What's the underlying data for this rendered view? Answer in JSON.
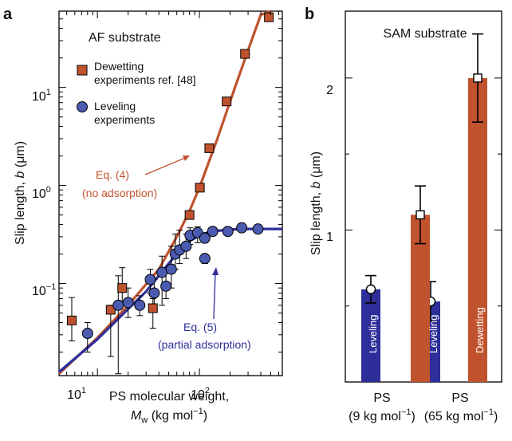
{
  "panel_a": {
    "letter": "a",
    "title": "AF substrate",
    "legend": [
      {
        "label_line1": "Dewetting",
        "label_line2": "experiments ref. [48]",
        "color": "#c0532e",
        "marker": "square"
      },
      {
        "label_line1": "Leveling",
        "label_line2": "experiments",
        "color": "#4a5bb0",
        "marker": "circle"
      }
    ],
    "anno_red": {
      "line1": "Eq. (4)",
      "line2": "(no adsorption)"
    },
    "anno_blue": {
      "line1": "Eq. (5)",
      "line2": "(partial adsorption)"
    },
    "xlabel_line1": "PS molecular weight,",
    "xlabel_line2_var": "M",
    "xlabel_line2_sub": "w",
    "xlabel_line2_unit": " (kg mol",
    "xlabel_line2_sup": "−1",
    "xlabel_line2_end": ")",
    "ylabel_main": "Slip length, ",
    "ylabel_var": "b",
    "ylabel_unit": " (μm)",
    "xticks": [
      {
        "base": "10",
        "exp": "1"
      },
      {
        "base": "10",
        "exp": "2"
      }
    ],
    "yticks": [
      {
        "base": "10",
        "exp": "−1"
      },
      {
        "base": "10",
        "exp": "0"
      },
      {
        "base": "10",
        "exp": "1"
      }
    ]
  },
  "panel_b": {
    "letter": "b",
    "title": "SAM substrate",
    "ylabel_main": "Slip length, ",
    "ylabel_var": "b",
    "ylabel_unit": " (μm)",
    "yticks": [
      "1",
      "2"
    ],
    "bar_labels": [
      "Leveling",
      "Dewetting",
      "Leveling",
      "Dewetting"
    ],
    "groups": [
      {
        "line1": "PS",
        "line2": "(9 kg mol",
        "sup": "−1",
        "end": ")"
      },
      {
        "line1": "PS",
        "line2": "(65 kg mol",
        "sup": "−1",
        "end": ")"
      }
    ]
  },
  "chart_data": [
    {
      "type": "scatter",
      "title": "AF substrate",
      "xlabel": "PS molecular weight, Mw (kg mol−1)",
      "ylabel": "Slip length, b (μm)",
      "xscale": "log",
      "yscale": "log",
      "xlim": [
        4.2,
        650
      ],
      "ylim": [
        0.0115,
        60
      ],
      "colors": {
        "dewetting": "#c0532e",
        "leveling": "#4a5bb0",
        "fit_blue": "#2e2e9a"
      },
      "series": [
        {
          "name": "Dewetting experiments ref. [48]",
          "x": [
            5.6,
            13.5,
            17.5,
            35,
            80,
            101,
            125,
            185,
            280,
            480
          ],
          "y": [
            0.042,
            0.054,
            0.09,
            0.056,
            0.5,
            0.95,
            2.4,
            7.2,
            22,
            52
          ],
          "yerr_low": [
            0.026,
            0.018,
            0.06,
            0.035,
            0,
            0,
            0,
            0,
            0,
            0
          ],
          "yerr_high": [
            0.072,
            0.06,
            0.145,
            0.07,
            0,
            0,
            0,
            0,
            0,
            0
          ]
        },
        {
          "name": "Leveling experiments",
          "x": [
            8,
            16,
            20,
            26,
            33,
            36,
            43,
            47,
            53,
            58,
            64,
            74,
            81,
            96,
            113,
            113,
            135,
            190,
            260,
            375
          ],
          "y": [
            0.031,
            0.06,
            0.064,
            0.06,
            0.11,
            0.08,
            0.13,
            0.094,
            0.14,
            0.2,
            0.22,
            0.24,
            0.31,
            0.33,
            0.29,
            0.18,
            0.34,
            0.34,
            0.37,
            0.36
          ],
          "yerr_low": [
            0.02,
            0.012,
            0.045,
            0.047,
            0.08,
            0.055,
            0.06,
            0.07,
            0.09,
            0.14,
            0.16,
            0.18,
            0.25,
            0.26,
            0.26,
            0.16,
            0.31,
            0.31,
            0.34,
            0.33
          ],
          "yerr_high": [
            0.04,
            0.12,
            0.09,
            0.075,
            0.14,
            0.11,
            0.19,
            0.14,
            0.24,
            0.32,
            0.35,
            0.32,
            0.37,
            0.38,
            0.33,
            0.2,
            0.37,
            0.37,
            0.4,
            0.39
          ]
        },
        {
          "name": "Eq. (4) (no adsorption)",
          "kind": "line",
          "x": [
            4.2,
            10,
            20,
            40,
            60,
            80,
            100,
            150,
            200,
            300,
            400,
            500
          ],
          "y": [
            0.012,
            0.028,
            0.06,
            0.14,
            0.3,
            0.55,
            0.95,
            3.0,
            7.2,
            24,
            55,
            100
          ]
        },
        {
          "name": "Eq. (5) (partial adsorption)",
          "kind": "line",
          "x": [
            4.2,
            10,
            20,
            30,
            40,
            50,
            60,
            70,
            80,
            100,
            130,
            200,
            300,
            650
          ],
          "y": [
            0.0125,
            0.027,
            0.055,
            0.083,
            0.12,
            0.16,
            0.2,
            0.24,
            0.27,
            0.31,
            0.34,
            0.355,
            0.36,
            0.36
          ]
        }
      ]
    },
    {
      "type": "bar",
      "title": "SAM substrate",
      "ylabel": "Slip length, b (μm)",
      "ylim": [
        0,
        2.44
      ],
      "categories": [
        "PS (9 kg mol−1)",
        "PS (65 kg mol−1)"
      ],
      "series": [
        {
          "name": "Leveling",
          "values": [
            0.61,
            0.53
          ],
          "err": [
            0.09,
            0.13
          ],
          "color": "#2e2e9a"
        },
        {
          "name": "Dewetting",
          "values": [
            1.1,
            2.0
          ],
          "err": [
            0.19,
            0.29
          ],
          "color": "#c0532e"
        }
      ]
    }
  ]
}
